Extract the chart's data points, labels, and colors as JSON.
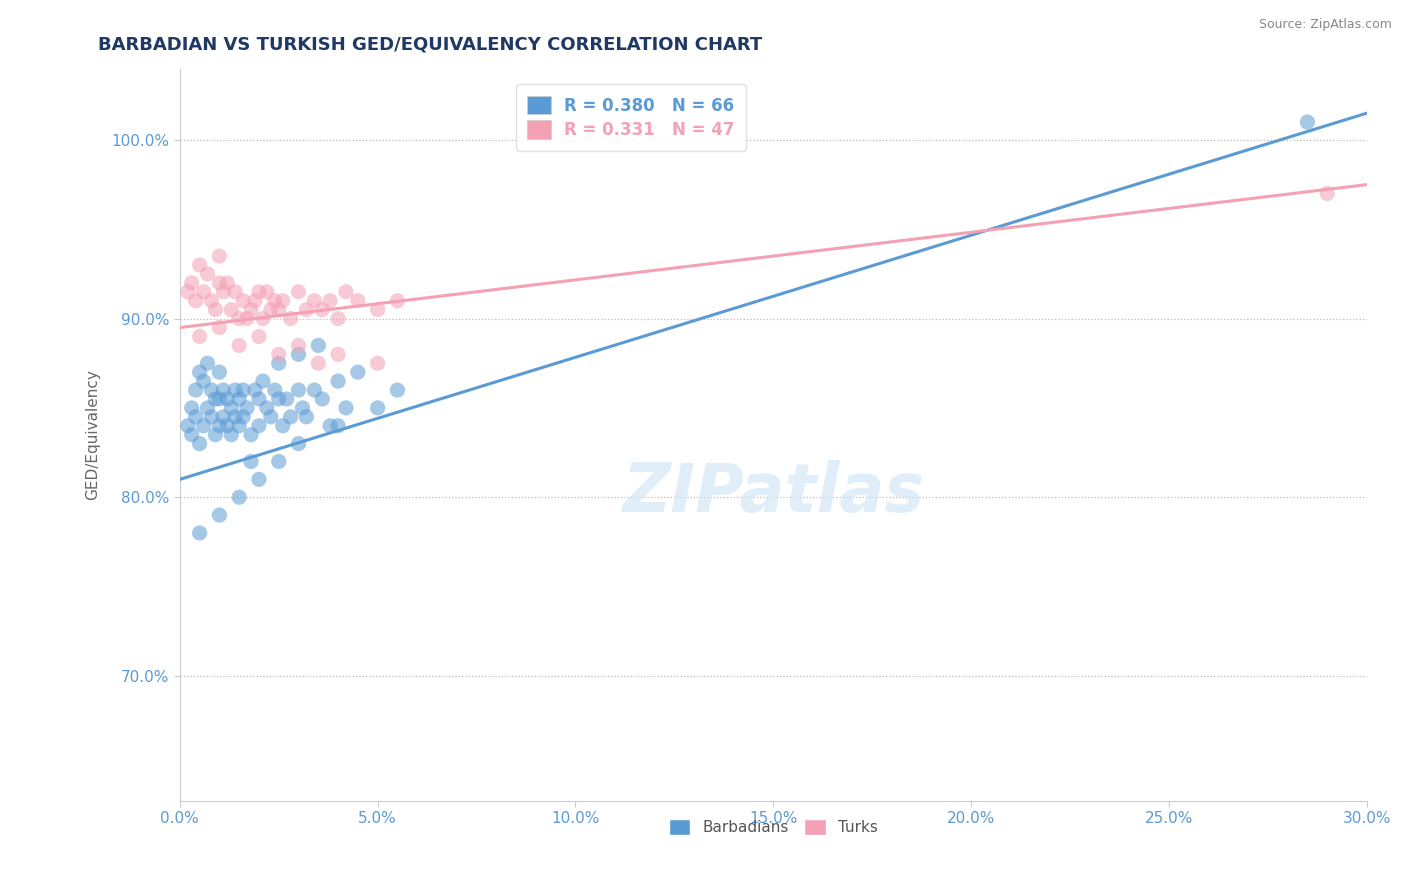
{
  "title": "BARBADIAN VS TURKISH GED/EQUIVALENCY CORRELATION CHART",
  "source": "Source: ZipAtlas.com",
  "ylabel": "GED/Equivalency",
  "xlim": [
    0.0,
    30.0
  ],
  "ylim": [
    63.0,
    104.0
  ],
  "xticks": [
    0.0,
    5.0,
    10.0,
    15.0,
    20.0,
    25.0,
    30.0
  ],
  "yticks": [
    70.0,
    80.0,
    90.0,
    100.0
  ],
  "ytick_labels": [
    "70.0%",
    "80.0%",
    "90.0%",
    "100.0%"
  ],
  "xtick_labels": [
    "0.0%",
    "5.0%",
    "10.0%",
    "15.0%",
    "20.0%",
    "25.0%",
    "30.0%"
  ],
  "blue_color": "#5b9bd5",
  "pink_color": "#f4a0b5",
  "blue_label": "Barbadians",
  "pink_label": "Turks",
  "R_blue": 0.38,
  "N_blue": 66,
  "R_pink": 0.331,
  "N_pink": 47,
  "blue_trend_x0": 0.0,
  "blue_trend_y0": 81.0,
  "blue_trend_x1": 30.0,
  "blue_trend_y1": 101.5,
  "pink_trend_x0": 0.0,
  "pink_trend_y0": 89.5,
  "pink_trend_x1": 30.0,
  "pink_trend_y1": 97.5,
  "blue_scatter_x": [
    0.2,
    0.3,
    0.3,
    0.4,
    0.4,
    0.5,
    0.5,
    0.6,
    0.6,
    0.7,
    0.7,
    0.8,
    0.8,
    0.9,
    0.9,
    1.0,
    1.0,
    1.0,
    1.1,
    1.1,
    1.2,
    1.2,
    1.3,
    1.3,
    1.4,
    1.4,
    1.5,
    1.5,
    1.6,
    1.6,
    1.7,
    1.8,
    1.9,
    2.0,
    2.0,
    2.1,
    2.2,
    2.3,
    2.4,
    2.5,
    2.6,
    2.7,
    2.8,
    3.0,
    3.1,
    3.2,
    3.4,
    3.6,
    3.8,
    4.0,
    4.2,
    4.5,
    1.8,
    2.5,
    3.0,
    3.5,
    0.5,
    1.0,
    1.5,
    2.0,
    2.5,
    3.0,
    4.0,
    5.0,
    5.5,
    28.5
  ],
  "blue_scatter_y": [
    84.0,
    85.0,
    83.5,
    86.0,
    84.5,
    87.0,
    83.0,
    86.5,
    84.0,
    87.5,
    85.0,
    86.0,
    84.5,
    85.5,
    83.5,
    87.0,
    85.5,
    84.0,
    86.0,
    84.5,
    85.5,
    84.0,
    85.0,
    83.5,
    86.0,
    84.5,
    85.5,
    84.0,
    86.0,
    84.5,
    85.0,
    83.5,
    86.0,
    85.5,
    84.0,
    86.5,
    85.0,
    84.5,
    86.0,
    85.5,
    84.0,
    85.5,
    84.5,
    86.0,
    85.0,
    84.5,
    86.0,
    85.5,
    84.0,
    86.5,
    85.0,
    87.0,
    82.0,
    87.5,
    88.0,
    88.5,
    78.0,
    79.0,
    80.0,
    81.0,
    82.0,
    83.0,
    84.0,
    85.0,
    86.0,
    101.0
  ],
  "pink_scatter_x": [
    0.2,
    0.3,
    0.4,
    0.5,
    0.6,
    0.7,
    0.8,
    0.9,
    1.0,
    1.0,
    1.1,
    1.2,
    1.3,
    1.4,
    1.5,
    1.6,
    1.7,
    1.8,
    1.9,
    2.0,
    2.1,
    2.2,
    2.3,
    2.4,
    2.5,
    2.6,
    2.8,
    3.0,
    3.2,
    3.4,
    3.6,
    3.8,
    4.0,
    4.2,
    4.5,
    5.0,
    5.5,
    0.5,
    1.0,
    1.5,
    2.0,
    2.5,
    3.0,
    3.5,
    4.0,
    5.0,
    29.0
  ],
  "pink_scatter_y": [
    91.5,
    92.0,
    91.0,
    93.0,
    91.5,
    92.5,
    91.0,
    90.5,
    93.5,
    92.0,
    91.5,
    92.0,
    90.5,
    91.5,
    90.0,
    91.0,
    90.0,
    90.5,
    91.0,
    91.5,
    90.0,
    91.5,
    90.5,
    91.0,
    90.5,
    91.0,
    90.0,
    91.5,
    90.5,
    91.0,
    90.5,
    91.0,
    90.0,
    91.5,
    91.0,
    90.5,
    91.0,
    89.0,
    89.5,
    88.5,
    89.0,
    88.0,
    88.5,
    87.5,
    88.0,
    87.5,
    97.0
  ]
}
